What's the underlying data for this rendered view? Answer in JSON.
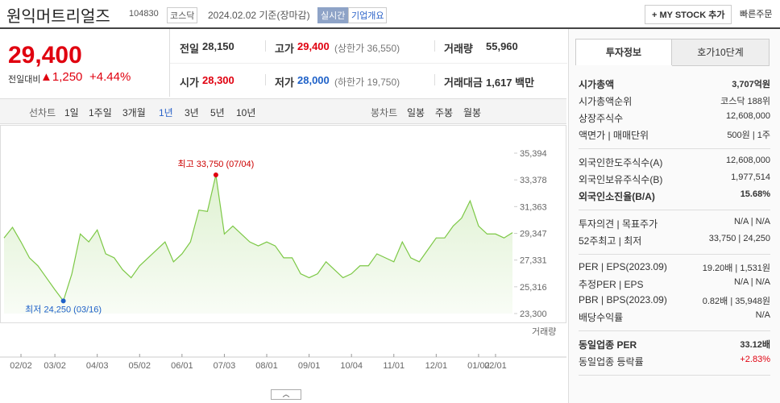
{
  "header": {
    "name": "원익머트리얼즈",
    "code": "104830",
    "market": "코스닥",
    "date": "2024.02.02 기준(장마감)",
    "realtime": "실시간",
    "overview": "기업개요",
    "mystock": "+ MY STOCK 추가",
    "quick_order": "빠른주문"
  },
  "price": {
    "current": "29,400",
    "change_label": "전일대비",
    "change": "▲1,250",
    "rate": "+4.44%"
  },
  "summary": [
    [
      {
        "label": "전일",
        "value": "28,150"
      },
      {
        "label": "고가",
        "value": "29,400",
        "note": "(상한가 36,550)",
        "color": "#e0000f"
      },
      {
        "label": "거래량",
        "value": "55,960"
      }
    ],
    [
      {
        "label": "시가",
        "value": "28,300",
        "color": "#e0000f"
      },
      {
        "label": "저가",
        "value": "28,000",
        "note": "(하한가 19,750)",
        "color": "#1e61c8"
      },
      {
        "label": "거래대금",
        "value": "1,617 백만"
      }
    ]
  ],
  "line_tabs": {
    "label": "선차트",
    "items": [
      "1일",
      "1주일",
      "3개월",
      "1년",
      "3년",
      "5년",
      "10년"
    ],
    "active": 3
  },
  "candle_tabs": {
    "label": "봉차트",
    "items": [
      "일봉",
      "주봉",
      "월봉"
    ]
  },
  "side_tabs": [
    "투자정보",
    "호가10단계"
  ],
  "info": [
    [
      {
        "label": "시가총액",
        "value": "3,707억원",
        "bold": true
      },
      {
        "label": "시가총액순위",
        "value": "코스닥 188위"
      },
      {
        "label": "상장주식수",
        "value": "12,608,000"
      },
      {
        "label": "액면가 | 매매단위",
        "value": "500원 | 1주"
      }
    ],
    [
      {
        "label": "외국인한도주식수(A)",
        "value": "12,608,000"
      },
      {
        "label": "외국인보유주식수(B)",
        "value": "1,977,514"
      },
      {
        "label": "외국인소진율(B/A)",
        "value": "15.68%",
        "bold": true
      }
    ],
    [
      {
        "label": "투자의견 | 목표주가",
        "value": "N/A | N/A"
      },
      {
        "label": "52주최고 | 최저",
        "value": "33,750 | 24,250"
      }
    ],
    [
      {
        "label": "PER | EPS(2023.09)",
        "value": "19.20배 | 1,531원"
      },
      {
        "label": "추정PER | EPS",
        "value": "N/A | N/A"
      },
      {
        "label": "PBR | BPS(2023.09)",
        "value": "0.82배 | 35,948원"
      },
      {
        "label": "배당수익률",
        "value": "N/A"
      }
    ],
    [
      {
        "label": "동일업종 PER",
        "value": "33.12배",
        "bold": true
      },
      {
        "label": "동일업종 등락률",
        "value": "+2.83%",
        "color": "#e0000f"
      }
    ]
  ],
  "chart_data": {
    "type": "line",
    "color": "#7cc845",
    "grid": false,
    "categories": [
      null,
      null,
      "02/02",
      null,
      null,
      null,
      "03/02",
      null,
      null,
      null,
      null,
      "04/03",
      null,
      null,
      null,
      null,
      "05/02",
      null,
      null,
      null,
      null,
      "06/01",
      null,
      null,
      null,
      null,
      "07/03",
      null,
      null,
      null,
      null,
      "08/01",
      null,
      null,
      null,
      null,
      "09/01",
      null,
      null,
      null,
      null,
      "10/04",
      null,
      null,
      null,
      null,
      "11/01",
      null,
      null,
      null,
      null,
      "12/01",
      null,
      null,
      null,
      null,
      "01/02",
      null,
      "02/01",
      null,
      null
    ],
    "values": [
      29000,
      29800,
      28700,
      27500,
      26900,
      26000,
      25100,
      24250,
      26280,
      29300,
      28700,
      29600,
      27800,
      27500,
      26600,
      26000,
      26900,
      27500,
      28100,
      28700,
      27200,
      27800,
      28700,
      31100,
      31000,
      33750,
      29300,
      29900,
      29300,
      28700,
      28400,
      28700,
      28400,
      27500,
      27500,
      26300,
      26000,
      26300,
      27200,
      26600,
      26000,
      26300,
      26900,
      26900,
      27800,
      27500,
      27200,
      28700,
      27500,
      27200,
      28100,
      29000,
      29000,
      29900,
      30500,
      31800,
      29900,
      29300,
      29300,
      29000,
      29400
    ],
    "ylim": [
      23300,
      35394
    ],
    "yticks": [
      {
        "value": 23300,
        "label": "23,300"
      },
      {
        "value": 25316,
        "label": "25,316"
      },
      {
        "value": 27331,
        "label": "27,331"
      },
      {
        "value": 29347,
        "label": "29,347"
      },
      {
        "value": 31363,
        "label": "31,363"
      },
      {
        "value": 33378,
        "label": "33,378"
      },
      {
        "value": 35394,
        "label": "35,394"
      }
    ],
    "high_label": "최고 33,750 (07/04)",
    "low_label": "최저 24,250 (03/16)",
    "volume_label": "거래량"
  }
}
